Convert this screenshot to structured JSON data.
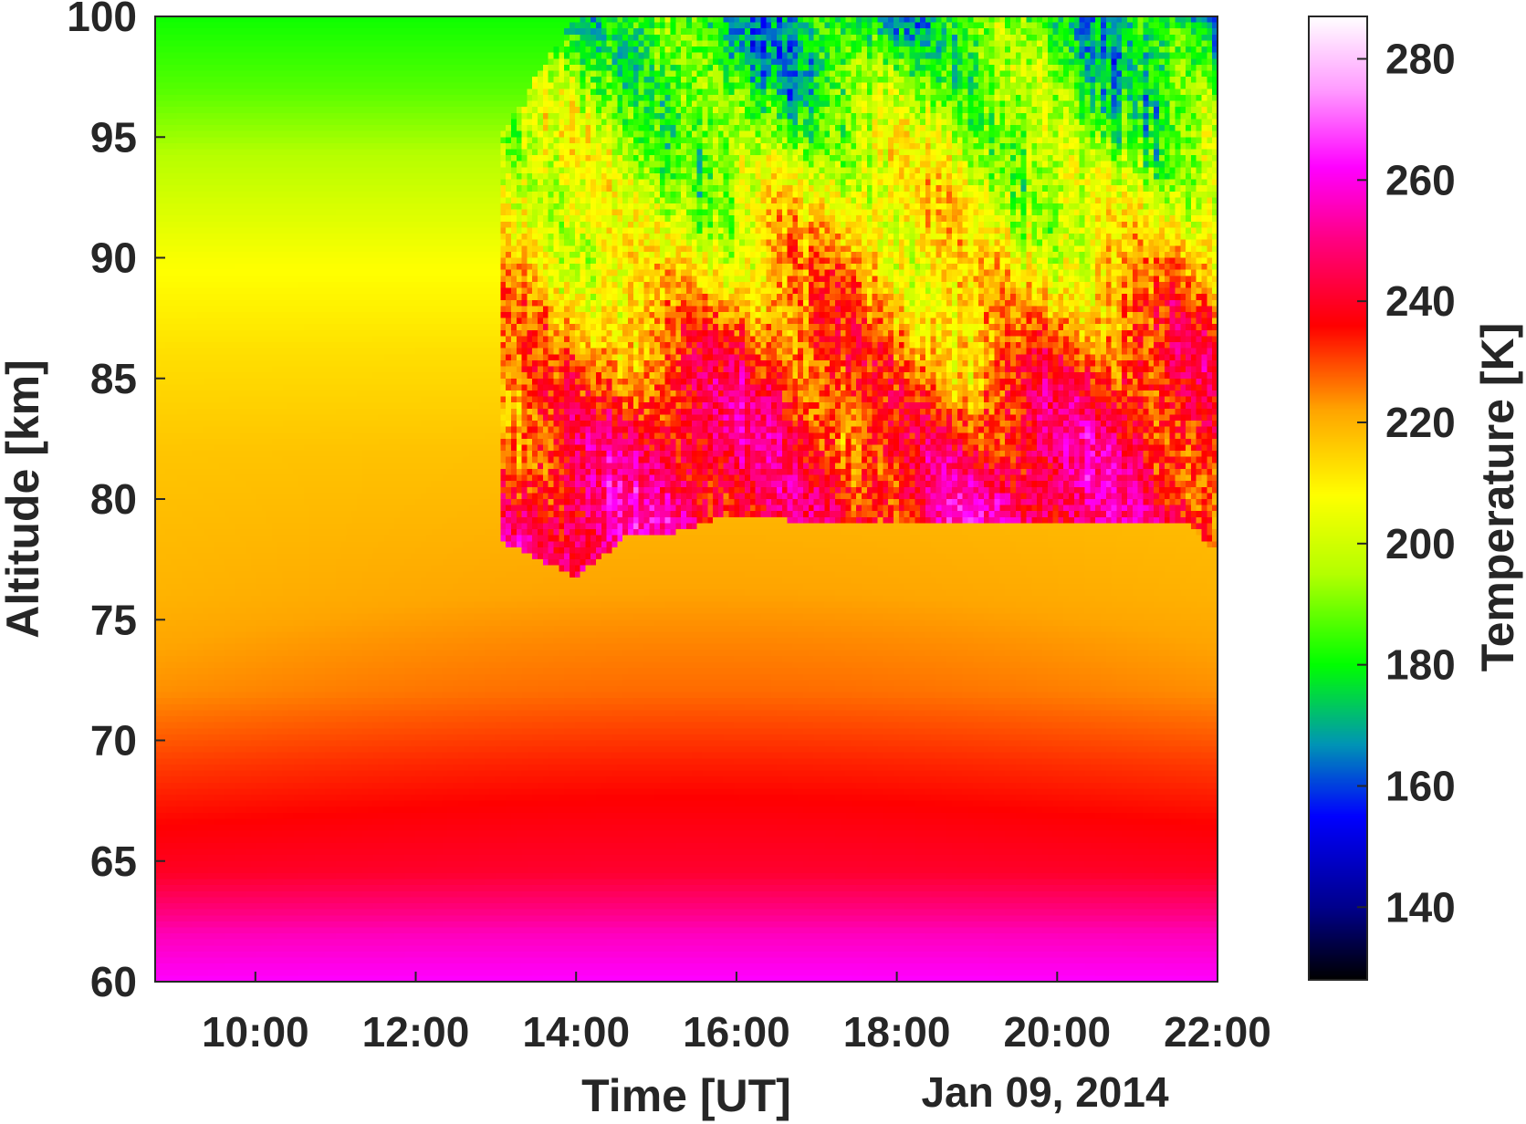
{
  "chart_data": {
    "type": "heatmap",
    "xlabel": "Time [UT]",
    "date_label": "Jan 09, 2014",
    "ylabel": "Altitude [km]",
    "colorbar_label": "Temperature [K]",
    "x_ticks": [
      "10:00",
      "12:00",
      "14:00",
      "16:00",
      "18:00",
      "20:00",
      "22:00"
    ],
    "x_tick_hours": [
      10,
      12,
      14,
      16,
      18,
      20,
      22
    ],
    "xlim_hours": [
      8.75,
      22.0
    ],
    "y_ticks": [
      "60",
      "65",
      "70",
      "75",
      "80",
      "85",
      "90",
      "95",
      "100"
    ],
    "ylim_km": [
      60,
      100
    ],
    "colorbar_ticks": [
      "140",
      "160",
      "180",
      "200",
      "220",
      "240",
      "260",
      "280"
    ],
    "clim_K": [
      128,
      287
    ],
    "colormap": [
      {
        "value": 128,
        "color": "#000000"
      },
      {
        "value": 140,
        "color": "#00008c"
      },
      {
        "value": 155,
        "color": "#0000ff"
      },
      {
        "value": 167,
        "color": "#0096b4"
      },
      {
        "value": 180,
        "color": "#00ff00"
      },
      {
        "value": 195,
        "color": "#b4ff00"
      },
      {
        "value": 208,
        "color": "#ffff00"
      },
      {
        "value": 222,
        "color": "#ffa500"
      },
      {
        "value": 236,
        "color": "#ff0000"
      },
      {
        "value": 250,
        "color": "#ff0080"
      },
      {
        "value": 262,
        "color": "#ff00ff"
      },
      {
        "value": 275,
        "color": "#ff9cff"
      },
      {
        "value": 287,
        "color": "#ffffff"
      }
    ],
    "background_profile_K": [
      {
        "altitude_km": 60,
        "temperature_K": 262
      },
      {
        "altitude_km": 62,
        "temperature_K": 255
      },
      {
        "altitude_km": 64.5,
        "temperature_K": 240
      },
      {
        "altitude_km": 66.5,
        "temperature_K": 236
      },
      {
        "altitude_km": 69,
        "temperature_K": 231
      },
      {
        "altitude_km": 72,
        "temperature_K": 224
      },
      {
        "altitude_km": 76,
        "temperature_K": 220
      },
      {
        "altitude_km": 82,
        "temperature_K": 217
      },
      {
        "altitude_km": 86,
        "temperature_K": 213
      },
      {
        "altitude_km": 90,
        "temperature_K": 207
      },
      {
        "altitude_km": 94,
        "temperature_K": 196
      },
      {
        "altitude_km": 97,
        "temperature_K": 187
      },
      {
        "altitude_km": 100,
        "temperature_K": 181
      }
    ],
    "measurement_start_hour": 13.05,
    "measurement_lower_edge_km": [
      {
        "hour": 13.05,
        "altitude_km": 78.3
      },
      {
        "hour": 13.5,
        "altitude_km": 77.5
      },
      {
        "hour": 14.0,
        "altitude_km": 76.8
      },
      {
        "hour": 14.3,
        "altitude_km": 77.5
      },
      {
        "hour": 14.6,
        "altitude_km": 78.4
      },
      {
        "hour": 15.2,
        "altitude_km": 78.6
      },
      {
        "hour": 15.8,
        "altitude_km": 79.2
      },
      {
        "hour": 18.0,
        "altitude_km": 79.0
      },
      {
        "hour": 20.0,
        "altitude_km": 79.0
      },
      {
        "hour": 21.6,
        "altitude_km": 79.0
      },
      {
        "hour": 22.0,
        "altitude_km": 77.8
      }
    ],
    "measurement_upper_edge_km": [
      {
        "hour": 13.05,
        "altitude_km": 95.0
      },
      {
        "hour": 13.4,
        "altitude_km": 97.0
      },
      {
        "hour": 13.7,
        "altitude_km": 98.5
      },
      {
        "hour": 14.0,
        "altitude_km": 100
      }
    ],
    "measurement_mean_profile_K": [
      {
        "altitude_km": 78,
        "temperature_K": 248
      },
      {
        "altitude_km": 80,
        "temperature_K": 244
      },
      {
        "altitude_km": 82,
        "temperature_K": 240
      },
      {
        "altitude_km": 84,
        "temperature_K": 236
      },
      {
        "altitude_km": 86,
        "temperature_K": 228
      },
      {
        "altitude_km": 88,
        "temperature_K": 220
      },
      {
        "altitude_km": 90,
        "temperature_K": 212
      },
      {
        "altitude_km": 92,
        "temperature_K": 205
      },
      {
        "altitude_km": 94,
        "temperature_K": 198
      },
      {
        "altitude_km": 96,
        "temperature_K": 190
      },
      {
        "altitude_km": 98,
        "temperature_K": 183
      },
      {
        "altitude_km": 100,
        "temperature_K": 176
      }
    ]
  }
}
